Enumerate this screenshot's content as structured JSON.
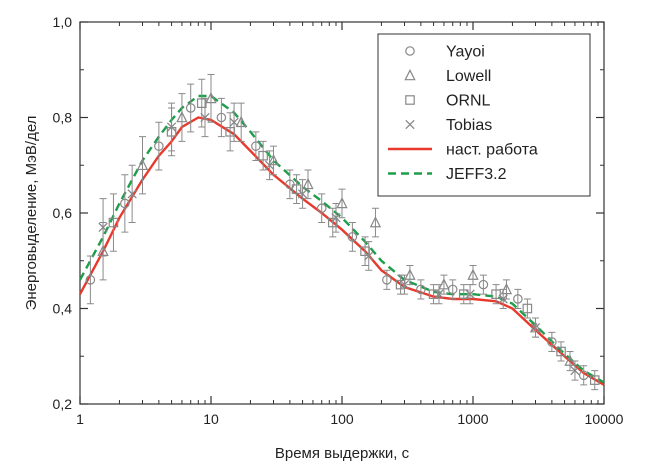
{
  "chart_data": {
    "type": "scatter",
    "xlabel": "Время выдержки, с",
    "ylabel": "Энерговыделение, МэВ/дел",
    "xscale": "log",
    "xlim": [
      1,
      10000
    ],
    "ylim": [
      0.2,
      1.0
    ],
    "grid": false,
    "legend_position": "top-right",
    "x_ticks": [
      1,
      10,
      100,
      1000,
      10000
    ],
    "x_tick_labels": [
      "1",
      "10",
      "100",
      "1000",
      "10000"
    ],
    "y_ticks": [
      0.2,
      0.4,
      0.6,
      0.8,
      1.0
    ],
    "y_tick_labels": [
      "0,2",
      "0,4",
      "0,6",
      "0,8",
      "1,0"
    ],
    "series": [
      {
        "name": "Yayoi",
        "marker": "circle",
        "color": "#888888",
        "points": [
          {
            "x": 1.2,
            "y": 0.46,
            "err": 0.05
          },
          {
            "x": 2.2,
            "y": 0.62,
            "err": 0.06
          },
          {
            "x": 4,
            "y": 0.74,
            "err": 0.05
          },
          {
            "x": 7,
            "y": 0.82,
            "err": 0.05
          },
          {
            "x": 12,
            "y": 0.8,
            "err": 0.04
          },
          {
            "x": 22,
            "y": 0.74,
            "err": 0.03
          },
          {
            "x": 40,
            "y": 0.66,
            "err": 0.03
          },
          {
            "x": 70,
            "y": 0.61,
            "err": 0.03
          },
          {
            "x": 120,
            "y": 0.55,
            "err": 0.03
          },
          {
            "x": 220,
            "y": 0.46,
            "err": 0.02
          },
          {
            "x": 400,
            "y": 0.44,
            "err": 0.02
          },
          {
            "x": 700,
            "y": 0.44,
            "err": 0.02
          },
          {
            "x": 1200,
            "y": 0.45,
            "err": 0.02
          },
          {
            "x": 2200,
            "y": 0.42,
            "err": 0.02
          },
          {
            "x": 4000,
            "y": 0.33,
            "err": 0.02
          },
          {
            "x": 7000,
            "y": 0.26,
            "err": 0.02
          }
        ]
      },
      {
        "name": "Lowell",
        "marker": "triangle",
        "color": "#888888",
        "points": [
          {
            "x": 1.5,
            "y": 0.52,
            "err": 0.06
          },
          {
            "x": 3,
            "y": 0.7,
            "err": 0.06
          },
          {
            "x": 6,
            "y": 0.8,
            "err": 0.05
          },
          {
            "x": 10,
            "y": 0.84,
            "err": 0.05
          },
          {
            "x": 17,
            "y": 0.79,
            "err": 0.04
          },
          {
            "x": 30,
            "y": 0.71,
            "err": 0.03
          },
          {
            "x": 55,
            "y": 0.66,
            "err": 0.03
          },
          {
            "x": 100,
            "y": 0.62,
            "err": 0.03
          },
          {
            "x": 180,
            "y": 0.58,
            "err": 0.03
          },
          {
            "x": 330,
            "y": 0.47,
            "err": 0.02
          },
          {
            "x": 600,
            "y": 0.45,
            "err": 0.02
          },
          {
            "x": 1000,
            "y": 0.47,
            "err": 0.02
          },
          {
            "x": 1800,
            "y": 0.44,
            "err": 0.02
          },
          {
            "x": 3000,
            "y": 0.36,
            "err": 0.02
          },
          {
            "x": 5500,
            "y": 0.29,
            "err": 0.02
          }
        ]
      },
      {
        "name": "ORNL",
        "marker": "square",
        "color": "#888888",
        "points": [
          {
            "x": 1.8,
            "y": 0.58,
            "err": 0.06
          },
          {
            "x": 5,
            "y": 0.77,
            "err": 0.05
          },
          {
            "x": 8.5,
            "y": 0.83,
            "err": 0.05
          },
          {
            "x": 14,
            "y": 0.77,
            "err": 0.04
          },
          {
            "x": 25,
            "y": 0.72,
            "err": 0.03
          },
          {
            "x": 45,
            "y": 0.65,
            "err": 0.03
          },
          {
            "x": 85,
            "y": 0.58,
            "err": 0.03
          },
          {
            "x": 150,
            "y": 0.52,
            "err": 0.03
          },
          {
            "x": 280,
            "y": 0.45,
            "err": 0.02
          },
          {
            "x": 500,
            "y": 0.43,
            "err": 0.02
          },
          {
            "x": 850,
            "y": 0.43,
            "err": 0.02
          },
          {
            "x": 1500,
            "y": 0.43,
            "err": 0.02
          },
          {
            "x": 2600,
            "y": 0.4,
            "err": 0.02
          },
          {
            "x": 4700,
            "y": 0.31,
            "err": 0.02
          },
          {
            "x": 8500,
            "y": 0.25,
            "err": 0.02
          }
        ]
      },
      {
        "name": "Tobias",
        "marker": "cross",
        "color": "#888888",
        "points": [
          {
            "x": 1.5,
            "y": 0.57,
            "err": 0.06
          },
          {
            "x": 2.5,
            "y": 0.64,
            "err": 0.06
          },
          {
            "x": 5,
            "y": 0.78,
            "err": 0.05
          },
          {
            "x": 9,
            "y": 0.8,
            "err": 0.04
          },
          {
            "x": 15,
            "y": 0.79,
            "err": 0.04
          },
          {
            "x": 28,
            "y": 0.7,
            "err": 0.03
          },
          {
            "x": 50,
            "y": 0.64,
            "err": 0.03
          },
          {
            "x": 90,
            "y": 0.59,
            "err": 0.03
          },
          {
            "x": 160,
            "y": 0.51,
            "err": 0.03
          },
          {
            "x": 300,
            "y": 0.45,
            "err": 0.02
          },
          {
            "x": 550,
            "y": 0.43,
            "err": 0.02
          },
          {
            "x": 950,
            "y": 0.43,
            "err": 0.02
          },
          {
            "x": 1700,
            "y": 0.42,
            "err": 0.02
          },
          {
            "x": 3000,
            "y": 0.36,
            "err": 0.02
          },
          {
            "x": 6000,
            "y": 0.27,
            "err": 0.02
          }
        ]
      },
      {
        "name": "наст. работа",
        "marker": "line",
        "style": "solid",
        "color": "#e8392c",
        "points": [
          {
            "x": 1,
            "y": 0.43
          },
          {
            "x": 1.5,
            "y": 0.52
          },
          {
            "x": 2,
            "y": 0.59
          },
          {
            "x": 3,
            "y": 0.67
          },
          {
            "x": 4,
            "y": 0.72
          },
          {
            "x": 5,
            "y": 0.75
          },
          {
            "x": 6,
            "y": 0.78
          },
          {
            "x": 8,
            "y": 0.8
          },
          {
            "x": 10,
            "y": 0.795
          },
          {
            "x": 15,
            "y": 0.765
          },
          {
            "x": 20,
            "y": 0.73
          },
          {
            "x": 30,
            "y": 0.68
          },
          {
            "x": 50,
            "y": 0.63
          },
          {
            "x": 70,
            "y": 0.6
          },
          {
            "x": 100,
            "y": 0.565
          },
          {
            "x": 150,
            "y": 0.52
          },
          {
            "x": 200,
            "y": 0.48
          },
          {
            "x": 300,
            "y": 0.445
          },
          {
            "x": 500,
            "y": 0.425
          },
          {
            "x": 700,
            "y": 0.42
          },
          {
            "x": 1000,
            "y": 0.42
          },
          {
            "x": 1500,
            "y": 0.415
          },
          {
            "x": 2000,
            "y": 0.4
          },
          {
            "x": 3000,
            "y": 0.355
          },
          {
            "x": 5000,
            "y": 0.3
          },
          {
            "x": 7000,
            "y": 0.265
          },
          {
            "x": 10000,
            "y": 0.24
          }
        ]
      },
      {
        "name": "JEFF3.2",
        "marker": "line",
        "style": "dashed",
        "color": "#1e9d4b",
        "points": [
          {
            "x": 1,
            "y": 0.46
          },
          {
            "x": 1.5,
            "y": 0.55
          },
          {
            "x": 2,
            "y": 0.62
          },
          {
            "x": 3,
            "y": 0.71
          },
          {
            "x": 4,
            "y": 0.76
          },
          {
            "x": 5,
            "y": 0.795
          },
          {
            "x": 6,
            "y": 0.82
          },
          {
            "x": 8,
            "y": 0.845
          },
          {
            "x": 10,
            "y": 0.845
          },
          {
            "x": 15,
            "y": 0.81
          },
          {
            "x": 20,
            "y": 0.77
          },
          {
            "x": 30,
            "y": 0.71
          },
          {
            "x": 50,
            "y": 0.655
          },
          {
            "x": 70,
            "y": 0.625
          },
          {
            "x": 100,
            "y": 0.59
          },
          {
            "x": 150,
            "y": 0.54
          },
          {
            "x": 200,
            "y": 0.5
          },
          {
            "x": 300,
            "y": 0.46
          },
          {
            "x": 500,
            "y": 0.435
          },
          {
            "x": 700,
            "y": 0.43
          },
          {
            "x": 1000,
            "y": 0.43
          },
          {
            "x": 1500,
            "y": 0.425
          },
          {
            "x": 2000,
            "y": 0.41
          },
          {
            "x": 3000,
            "y": 0.365
          },
          {
            "x": 5000,
            "y": 0.305
          },
          {
            "x": 7000,
            "y": 0.27
          },
          {
            "x": 10000,
            "y": 0.245
          }
        ]
      }
    ]
  }
}
